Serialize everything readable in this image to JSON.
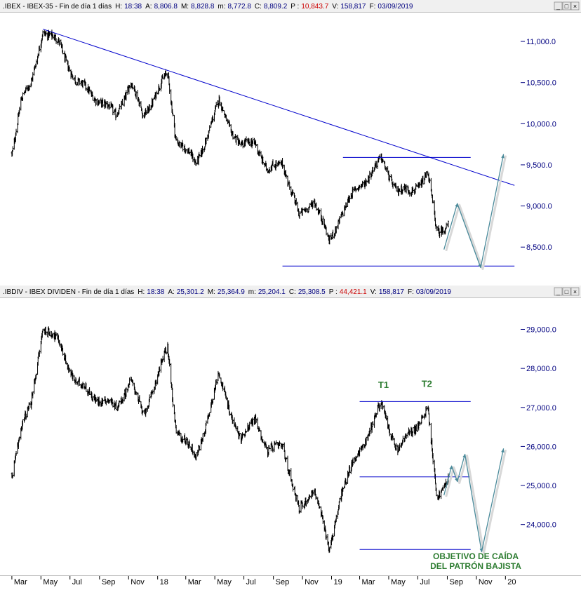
{
  "panels": [
    {
      "header": {
        "symbol": ".IBEX - IBEX-35 - Fin de día 1 días",
        "fields": [
          {
            "label": "H:",
            "value": "18:38",
            "color": "#000080"
          },
          {
            "label": "A:",
            "value": "8,806.8",
            "color": "#000080"
          },
          {
            "label": "M:",
            "value": "8,828.8",
            "color": "#000080"
          },
          {
            "label": "m:",
            "value": "8,772.8",
            "color": "#000080"
          },
          {
            "label": "C:",
            "value": "8,809.2",
            "color": "#000080"
          },
          {
            "label": "P :",
            "value": "10,843.7",
            "color": "#cc0000"
          },
          {
            "label": "V:",
            "value": "158,817",
            "color": "#000080"
          },
          {
            "label": "F:",
            "value": "03/09/2019",
            "color": "#000080"
          }
        ],
        "window_buttons": [
          "_",
          "□",
          "×"
        ]
      },
      "y_ticks": [
        {
          "label": "11,000.0",
          "value": 11000
        },
        {
          "label": "10,500.0",
          "value": 10500
        },
        {
          "label": "10,000.0",
          "value": 10000
        },
        {
          "label": "9,500.0",
          "value": 9500
        },
        {
          "label": "9,000.0",
          "value": 9000
        },
        {
          "label": "8,500.0",
          "value": 8500
        }
      ],
      "annotations": [],
      "caption": []
    },
    {
      "header": {
        "symbol": ".IBDIV - IBEX DIVIDEN - Fin de día 1 días",
        "fields": [
          {
            "label": "H:",
            "value": "18:38",
            "color": "#000080"
          },
          {
            "label": "A:",
            "value": "25,301.2",
            "color": "#000080"
          },
          {
            "label": "M:",
            "value": "25,364.9",
            "color": "#000080"
          },
          {
            "label": "m:",
            "value": "25,204.1",
            "color": "#000080"
          },
          {
            "label": "C:",
            "value": "25,308.5",
            "color": "#000080"
          },
          {
            "label": "P :",
            "value": "44,421.1",
            "color": "#cc0000"
          },
          {
            "label": "V:",
            "value": "158,817",
            "color": "#000080"
          },
          {
            "label": "F:",
            "value": "03/09/2019",
            "color": "#000080"
          }
        ],
        "window_buttons": [
          "_",
          "□",
          "×"
        ]
      },
      "y_ticks": [
        {
          "label": "29,000.0",
          "value": 29000
        },
        {
          "label": "28,000.0",
          "value": 28000
        },
        {
          "label": "27,000.0",
          "value": 27000
        },
        {
          "label": "26,000.0",
          "value": 26000
        },
        {
          "label": "25,000.0",
          "value": 25000
        },
        {
          "label": "24,000.0",
          "value": 24000
        }
      ],
      "annotations": [
        "T1",
        "T2"
      ],
      "caption": [
        "OBJETIVO DE CAÍDA",
        "DEL PATRÓN BAJISTA"
      ]
    }
  ],
  "x_axis_labels": [
    "Mar",
    "May",
    "Jul",
    "Sep",
    "Nov",
    "18",
    "Mar",
    "May",
    "Jul",
    "Sep",
    "Nov",
    "19",
    "Mar",
    "May",
    "Jul",
    "Sep",
    "Nov",
    "20"
  ],
  "colors": {
    "price_bars": "#000000",
    "trendline": "#0000cc",
    "level_line": "#0000cc",
    "projection": "#4a8a9a",
    "annotation": "#2e7d32",
    "axis_label": "#000080",
    "negative_field": "#cc0000"
  },
  "chart_data": [
    {
      "type": "ohlc",
      "title": ".IBEX - IBEX-35",
      "x": [
        "2017-03",
        "2017-05",
        "2017-07",
        "2017-09",
        "2017-11",
        "2018-01",
        "2018-03",
        "2018-05",
        "2018-07",
        "2018-09",
        "2018-11",
        "2019-01",
        "2019-03",
        "2019-05",
        "2019-07",
        "2019-09"
      ],
      "anchors": [
        {
          "date": "2017-03-01",
          "close": 9650
        },
        {
          "date": "2017-03-20",
          "close": 10300
        },
        {
          "date": "2017-04-10",
          "close": 10450
        },
        {
          "date": "2017-05-05",
          "close": 11150
        },
        {
          "date": "2017-06-10",
          "close": 10950
        },
        {
          "date": "2017-07-15",
          "close": 10500
        },
        {
          "date": "2017-08-20",
          "close": 10350
        },
        {
          "date": "2017-10-05",
          "close": 10100
        },
        {
          "date": "2017-11-05",
          "close": 10500
        },
        {
          "date": "2017-12-01",
          "close": 10100
        },
        {
          "date": "2018-01-22",
          "close": 10600
        },
        {
          "date": "2018-02-08",
          "close": 9850
        },
        {
          "date": "2018-03-22",
          "close": 9500
        },
        {
          "date": "2018-05-10",
          "close": 10250
        },
        {
          "date": "2018-06-25",
          "close": 9700
        },
        {
          "date": "2018-07-25",
          "close": 9800
        },
        {
          "date": "2018-08-20",
          "close": 9400
        },
        {
          "date": "2018-09-20",
          "close": 9550
        },
        {
          "date": "2018-10-25",
          "close": 8850
        },
        {
          "date": "2018-11-25",
          "close": 9100
        },
        {
          "date": "2018-12-27",
          "close": 8550
        },
        {
          "date": "2019-01-20",
          "close": 8900
        },
        {
          "date": "2019-03-01",
          "close": 9250
        },
        {
          "date": "2019-04-15",
          "close": 9550
        },
        {
          "date": "2019-05-20",
          "close": 9200
        },
        {
          "date": "2019-06-15",
          "close": 9150
        },
        {
          "date": "2019-07-22",
          "close": 9400
        },
        {
          "date": "2019-08-10",
          "close": 8650
        },
        {
          "date": "2019-09-03",
          "close": 8809.2
        }
      ],
      "lines": [
        {
          "kind": "trendline",
          "from": {
            "date": "2017-05-05",
            "value": 11150
          },
          "to": {
            "date": "2020-01-20",
            "value": 9250
          }
        },
        {
          "kind": "level",
          "from": {
            "date": "2019-01-25",
            "value": 9590
          },
          "to": {
            "date": "2019-10-20",
            "value": 9590
          }
        },
        {
          "kind": "level",
          "from": {
            "date": "2018-09-20",
            "value": 8270
          },
          "to": {
            "date": "2020-01-20",
            "value": 8270
          }
        }
      ],
      "projection": [
        {
          "date": "2019-08-25",
          "value": 8470
        },
        {
          "date": "2019-09-22",
          "value": 9030
        },
        {
          "date": "2019-11-10",
          "value": 8250
        },
        {
          "date": "2019-12-28",
          "value": 9630
        }
      ],
      "ylim": [
        8050,
        11350
      ]
    },
    {
      "type": "ohlc",
      "title": ".IBDIV - IBEX DIVIDEN",
      "x": [
        "2017-03",
        "2017-05",
        "2017-07",
        "2017-09",
        "2017-11",
        "2018-01",
        "2018-03",
        "2018-05",
        "2018-07",
        "2018-09",
        "2018-11",
        "2019-01",
        "2019-03",
        "2019-05",
        "2019-07",
        "2019-09"
      ],
      "anchors": [
        {
          "date": "2017-03-01",
          "close": 25300
        },
        {
          "date": "2017-03-20",
          "close": 26500
        },
        {
          "date": "2017-04-10",
          "close": 27000
        },
        {
          "date": "2017-05-05",
          "close": 29100
        },
        {
          "date": "2017-06-10",
          "close": 28600
        },
        {
          "date": "2017-07-15",
          "close": 27600
        },
        {
          "date": "2017-08-20",
          "close": 27300
        },
        {
          "date": "2017-10-05",
          "close": 27000
        },
        {
          "date": "2017-11-05",
          "close": 27700
        },
        {
          "date": "2017-12-01",
          "close": 26800
        },
        {
          "date": "2018-01-22",
          "close": 28500
        },
        {
          "date": "2018-02-08",
          "close": 26500
        },
        {
          "date": "2018-03-22",
          "close": 25700
        },
        {
          "date": "2018-05-10",
          "close": 27800
        },
        {
          "date": "2018-06-25",
          "close": 26100
        },
        {
          "date": "2018-07-25",
          "close": 26800
        },
        {
          "date": "2018-08-20",
          "close": 25800
        },
        {
          "date": "2018-09-20",
          "close": 26100
        },
        {
          "date": "2018-10-25",
          "close": 24300
        },
        {
          "date": "2018-11-25",
          "close": 25000
        },
        {
          "date": "2018-12-27",
          "close": 23300
        },
        {
          "date": "2019-01-20",
          "close": 24800
        },
        {
          "date": "2019-03-01",
          "close": 25900
        },
        {
          "date": "2019-04-15",
          "close": 27050
        },
        {
          "date": "2019-05-20",
          "close": 25900
        },
        {
          "date": "2019-06-15",
          "close": 26300
        },
        {
          "date": "2019-07-22",
          "close": 27000
        },
        {
          "date": "2019-08-10",
          "close": 24600
        },
        {
          "date": "2019-09-03",
          "close": 25308.5
        }
      ],
      "lines": [
        {
          "kind": "level",
          "from": {
            "date": "2019-03-01",
            "value": 27150
          },
          "to": {
            "date": "2019-10-20",
            "value": 27150
          }
        },
        {
          "kind": "level",
          "from": {
            "date": "2019-03-01",
            "value": 25220
          },
          "to": {
            "date": "2019-10-20",
            "value": 25220
          }
        },
        {
          "kind": "level",
          "from": {
            "date": "2019-03-01",
            "value": 23360
          },
          "to": {
            "date": "2019-10-20",
            "value": 23360
          }
        }
      ],
      "projection": [
        {
          "date": "2019-08-25",
          "value": 24750
        },
        {
          "date": "2019-09-10",
          "value": 25500
        },
        {
          "date": "2019-09-22",
          "value": 25100
        },
        {
          "date": "2019-10-08",
          "value": 25800
        },
        {
          "date": "2019-11-12",
          "value": 23300
        },
        {
          "date": "2019-12-28",
          "value": 25950
        }
      ],
      "label_positions": [
        {
          "text_index": 0,
          "date": "2019-04-20",
          "value": 27500
        },
        {
          "text_index": 1,
          "date": "2019-07-20",
          "value": 27530
        }
      ],
      "ylim": [
        22700,
        29800
      ]
    }
  ]
}
